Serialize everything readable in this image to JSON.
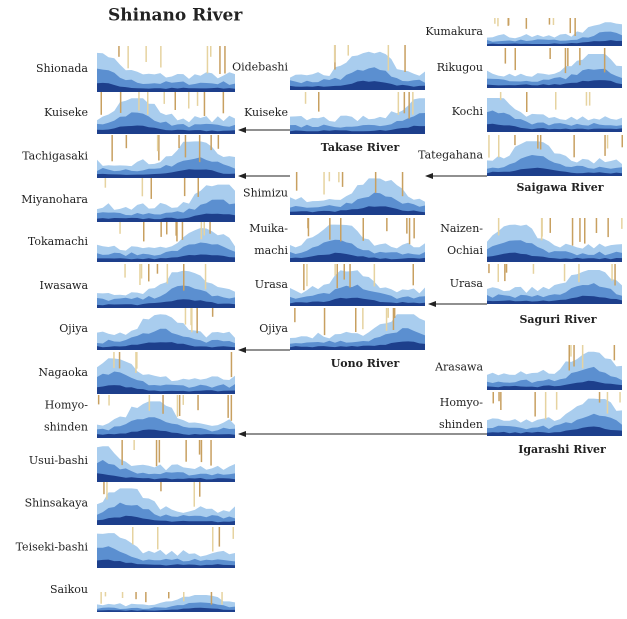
{
  "rivers": [
    {
      "name": "Shinano River",
      "stations": [
        {
          "label": [
            "Shionada"
          ]
        },
        {
          "label": [
            "Kuiseke"
          ]
        },
        {
          "label": [
            "Tachigasaki"
          ]
        },
        {
          "label": [
            "Miyanohara"
          ]
        },
        {
          "label": [
            "Tokamachi"
          ]
        },
        {
          "label": [
            "Iwasawa"
          ]
        },
        {
          "label": [
            "Ojiya"
          ]
        },
        {
          "label": [
            "Nagaoka"
          ]
        },
        {
          "label": [
            "Homyo-",
            "shinden"
          ]
        },
        {
          "label": [
            "Usui-bashi"
          ]
        },
        {
          "label": [
            "Shinsakaya"
          ]
        },
        {
          "label": [
            "Teiseki-bashi"
          ]
        },
        {
          "label": [
            "Saikou"
          ]
        }
      ]
    },
    {
      "name": "Takase River",
      "stations": [
        {
          "label": [
            "Oidebashi"
          ]
        },
        {
          "label": [
            "Kuiseke"
          ]
        }
      ]
    },
    {
      "name": "Uono River",
      "stations": [
        {
          "label": [
            "Shimizu"
          ]
        },
        {
          "label": [
            "Muika-",
            "machi"
          ]
        },
        {
          "label": [
            "Urasa"
          ]
        },
        {
          "label": [
            "Ojiya"
          ]
        }
      ]
    },
    {
      "name": "Saigawa River",
      "stations": [
        {
          "label": [
            "Kumakura"
          ]
        },
        {
          "label": [
            "Rikugou"
          ]
        },
        {
          "label": [
            "Kochi"
          ]
        },
        {
          "label": [
            "Tategahana"
          ]
        }
      ]
    },
    {
      "name": "Saguri River",
      "stations": [
        {
          "label": [
            "Naizen-",
            "Ochiai"
          ]
        },
        {
          "label": [
            "Urasa"
          ]
        }
      ]
    },
    {
      "name": "Igarashi River",
      "stations": [
        {
          "label": [
            "Arasawa"
          ]
        },
        {
          "label": [
            "Homyo-",
            "shinden"
          ]
        }
      ]
    }
  ]
}
